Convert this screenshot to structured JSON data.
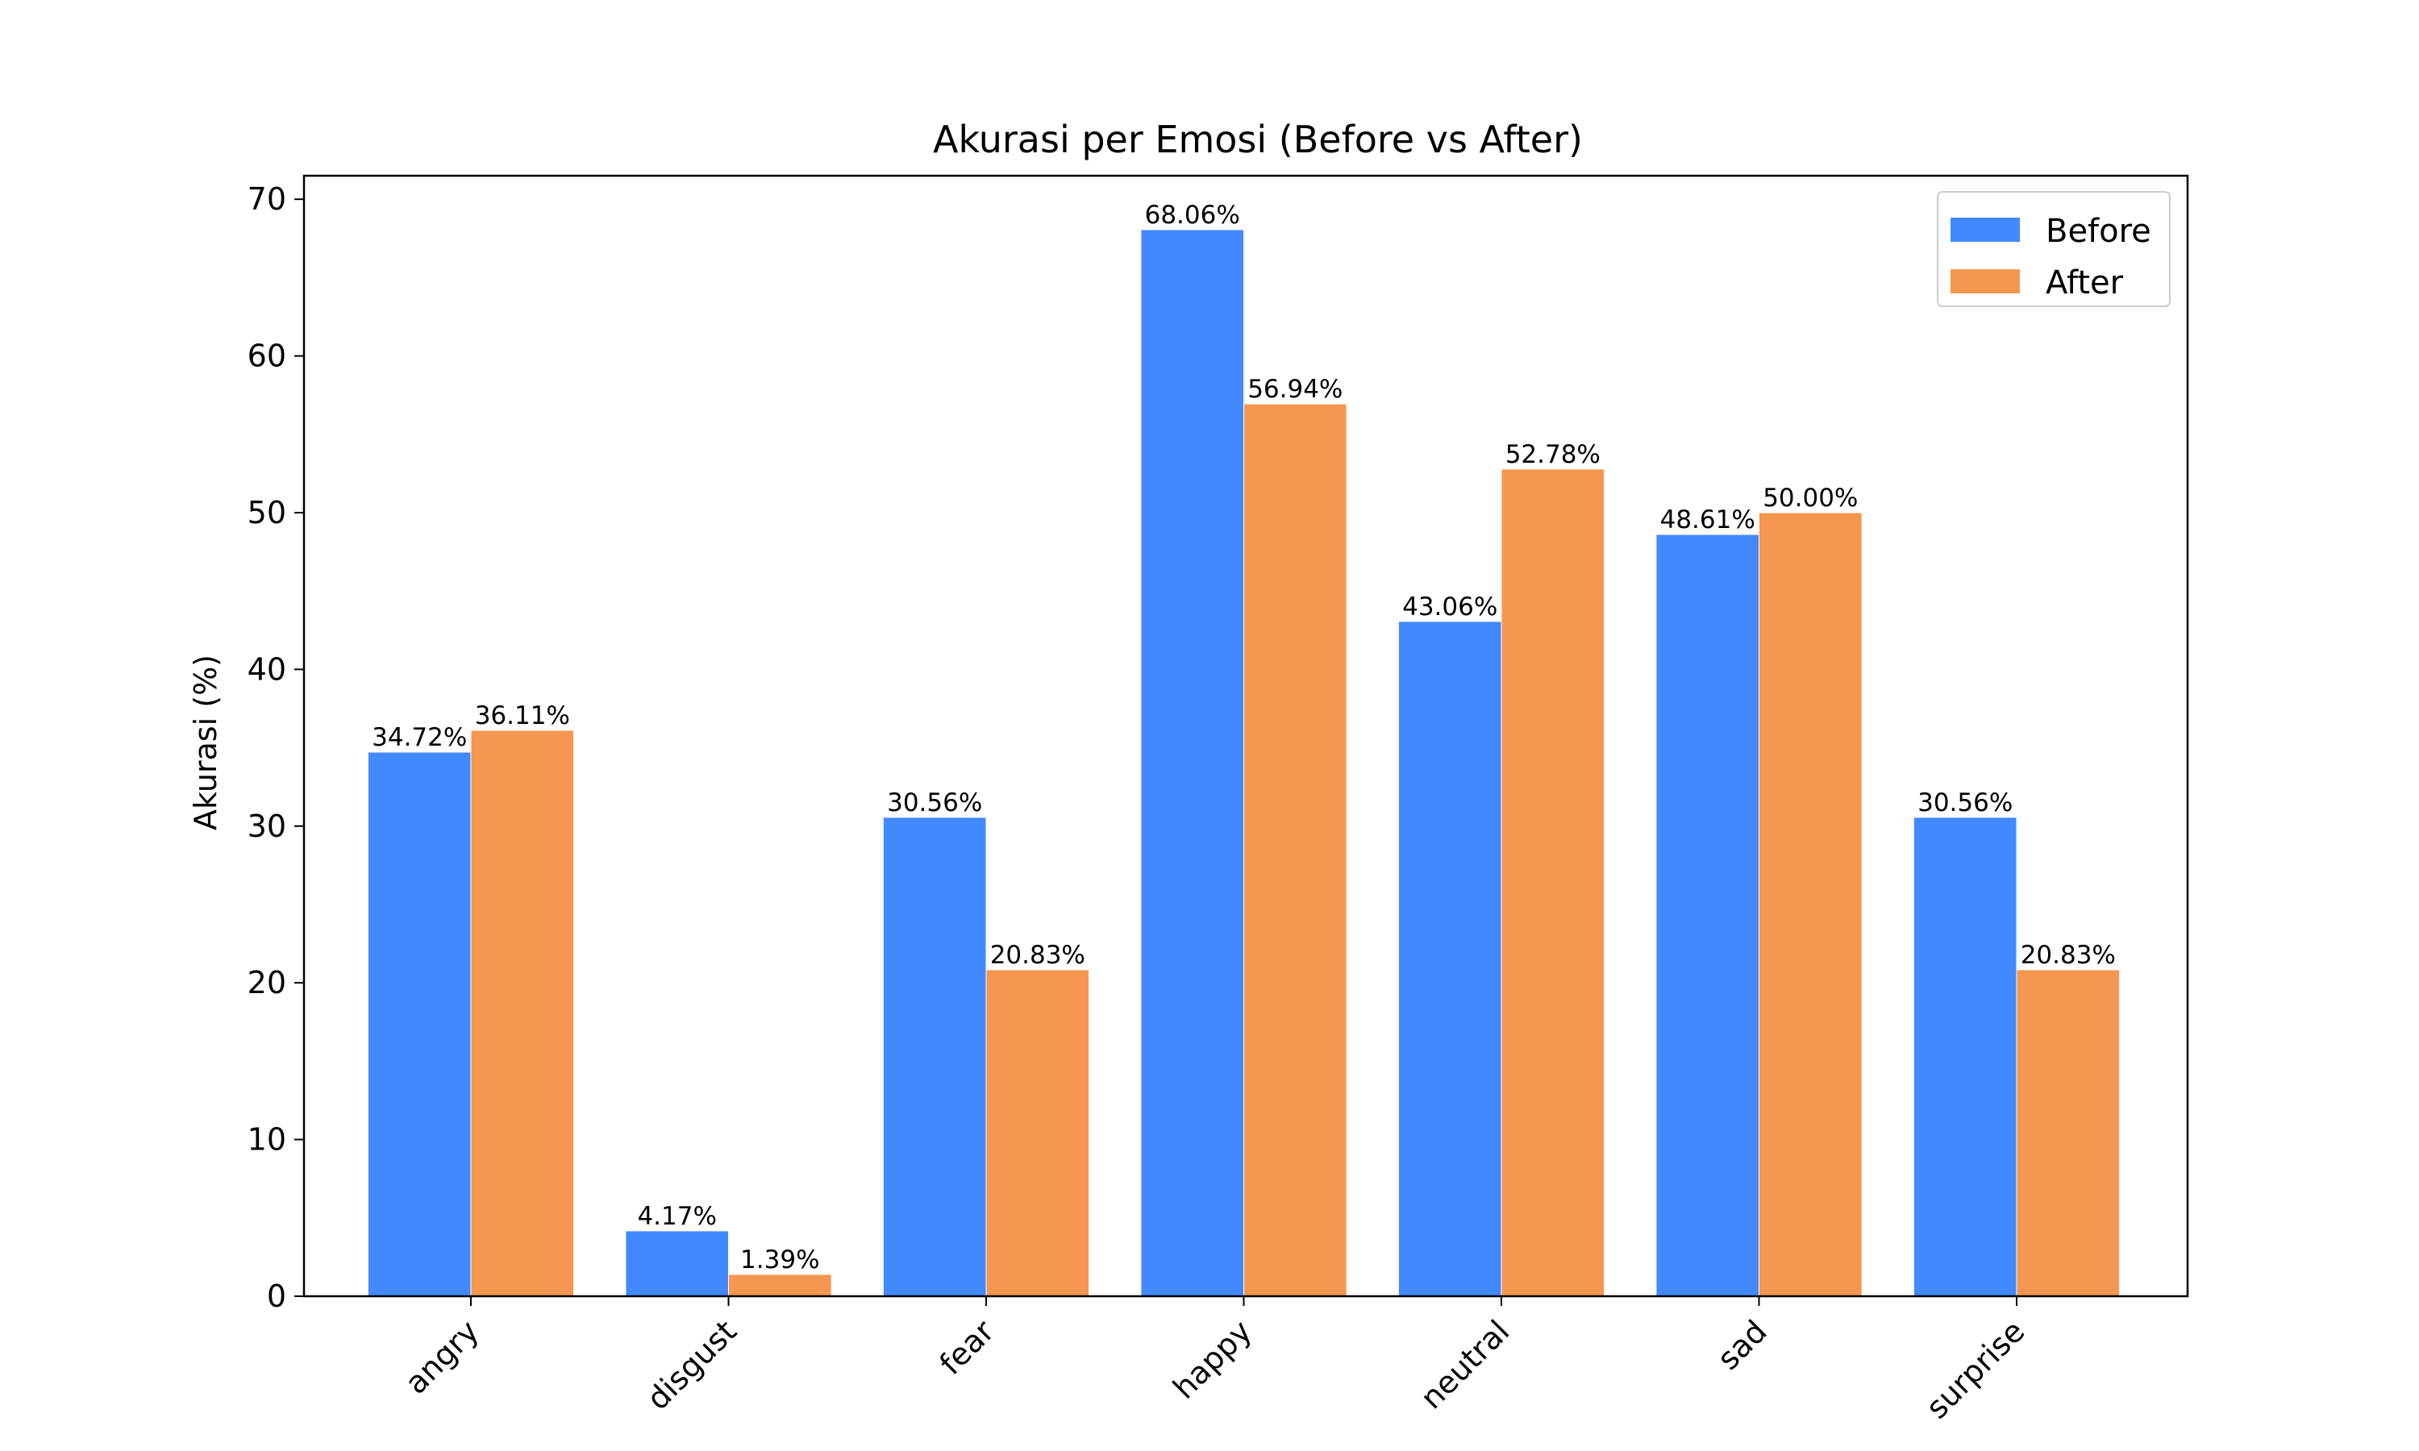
{
  "chart_data": {
    "type": "bar",
    "title": "Akurasi per Emosi (Before vs After)",
    "xlabel": "",
    "ylabel": "Akurasi (%)",
    "categories": [
      "angry",
      "disgust",
      "fear",
      "happy",
      "neutral",
      "sad",
      "surprise"
    ],
    "series": [
      {
        "name": "Before",
        "color": "#4289FF",
        "values": [
          34.72,
          4.17,
          30.56,
          68.06,
          43.06,
          48.61,
          30.56
        ],
        "labels": [
          "34.72%",
          "4.17%",
          "30.56%",
          "68.06%",
          "43.06%",
          "48.61%",
          "30.56%"
        ]
      },
      {
        "name": "After",
        "color": "#F59651",
        "values": [
          36.11,
          1.39,
          20.83,
          56.94,
          52.78,
          50.0,
          20.83
        ],
        "labels": [
          "36.11%",
          "1.39%",
          "20.83%",
          "56.94%",
          "52.78%",
          "50.00%",
          "20.83%"
        ]
      }
    ],
    "ylim": [
      0,
      71.5
    ],
    "yticks": [
      0,
      10,
      20,
      30,
      40,
      50,
      60,
      70
    ],
    "ytick_labels": [
      "0",
      "10",
      "20",
      "30",
      "40",
      "50",
      "60",
      "70"
    ],
    "grid": false,
    "legend_position": "top-right",
    "xtick_rotation_deg": 45
  }
}
